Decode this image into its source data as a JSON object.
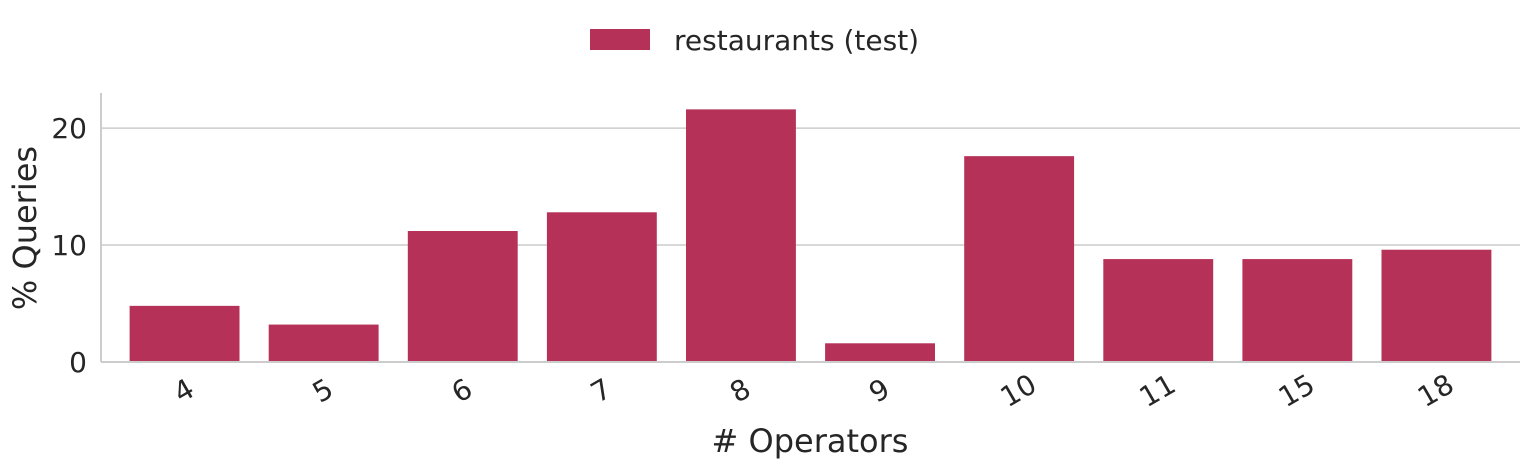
{
  "chart_data": {
    "type": "bar",
    "categories": [
      "4",
      "5",
      "6",
      "7",
      "8",
      "9",
      "10",
      "11",
      "15",
      "18"
    ],
    "series": [
      {
        "name": "restaurants (test)",
        "values": [
          4.8,
          3.2,
          11.2,
          12.8,
          21.6,
          1.6,
          17.6,
          8.8,
          8.8,
          9.6
        ],
        "color": "#b53157"
      }
    ],
    "xlabel": "# Operators",
    "ylabel": "% Queries",
    "ylim": [
      0,
      23
    ],
    "yticks": [
      0,
      10,
      20
    ],
    "grid": "horizontal",
    "legend_position": "top-center",
    "xtick_rotation": -30
  }
}
